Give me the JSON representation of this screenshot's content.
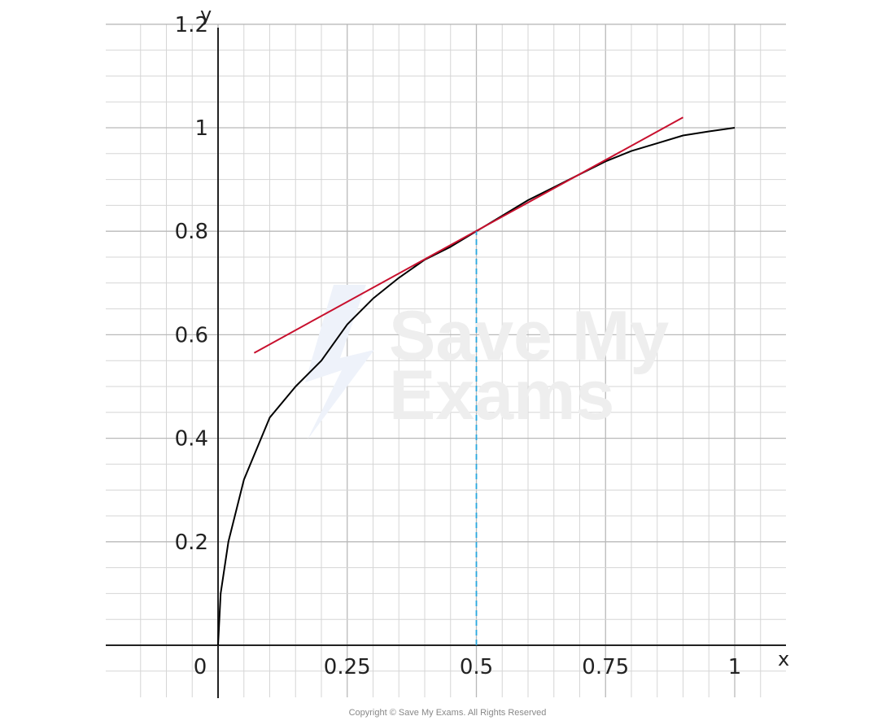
{
  "chart_data": {
    "type": "line",
    "xlabel": "x",
    "ylabel": "y",
    "xlim": [
      -0.2,
      1.05
    ],
    "ylim": [
      -0.1,
      1.22
    ],
    "x_ticks": [
      {
        "value": 0,
        "label": "0"
      },
      {
        "value": 0.25,
        "label": "0.25"
      },
      {
        "value": 0.5,
        "label": "0.5"
      },
      {
        "value": 0.75,
        "label": "0.75"
      },
      {
        "value": 1,
        "label": "1"
      }
    ],
    "y_ticks": [
      {
        "value": 0.2,
        "label": "0.2"
      },
      {
        "value": 0.4,
        "label": "0.4"
      },
      {
        "value": 0.6,
        "label": "0.6"
      },
      {
        "value": 0.8,
        "label": "0.8"
      },
      {
        "value": 1,
        "label": "1"
      },
      {
        "value": 1.2,
        "label": "1.2"
      }
    ],
    "grid": true,
    "series": [
      {
        "kind": "curve",
        "color": "#000000",
        "points": [
          [
            0,
            0
          ],
          [
            0.005,
            0.1
          ],
          [
            0.02,
            0.2
          ],
          [
            0.05,
            0.32
          ],
          [
            0.1,
            0.44
          ],
          [
            0.15,
            0.5
          ],
          [
            0.2,
            0.55
          ],
          [
            0.25,
            0.62
          ],
          [
            0.3,
            0.67
          ],
          [
            0.35,
            0.71
          ],
          [
            0.4,
            0.745
          ],
          [
            0.45,
            0.77
          ],
          [
            0.5,
            0.8
          ],
          [
            0.55,
            0.83
          ],
          [
            0.6,
            0.86
          ],
          [
            0.65,
            0.885
          ],
          [
            0.7,
            0.91
          ],
          [
            0.75,
            0.935
          ],
          [
            0.8,
            0.955
          ],
          [
            0.85,
            0.97
          ],
          [
            0.9,
            0.985
          ],
          [
            0.95,
            0.993
          ],
          [
            1,
            1
          ]
        ]
      },
      {
        "kind": "tangent",
        "color": "#c8102e",
        "points": [
          [
            0.07,
            0.565
          ],
          [
            0.9,
            1.02
          ]
        ]
      },
      {
        "kind": "dashed",
        "color": "#29a8e0",
        "points": [
          [
            0.5,
            0
          ],
          [
            0.5,
            0.8
          ]
        ]
      }
    ]
  },
  "watermark": [
    "Save My",
    "Exams"
  ],
  "copyright": "Copyright © Save My Exams. All Rights Reserved"
}
